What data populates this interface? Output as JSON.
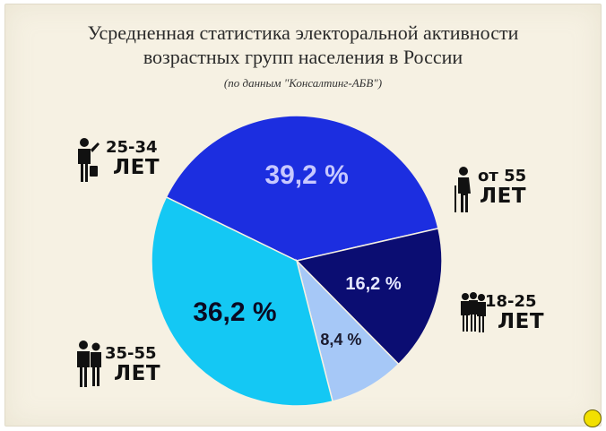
{
  "title_line1": "Усредненная статистика электоральной активности",
  "title_line2": "возрастных групп населения в России",
  "subtitle": "(по данным \"Консалтинг-АБВ\")",
  "chart_data": {
    "type": "pie",
    "title": "Усредненная статистика электоральной активности возрастных групп населения в России",
    "subtitle": "(по данным \"Консалтинг-АБВ\")",
    "slices": [
      {
        "group_line1": "25-34",
        "group_line2": "ЛЕТ",
        "value": 39.2,
        "label": "39,2 %",
        "color": "#1c2ee0",
        "text_color": "#c7c8ff"
      },
      {
        "group_line1": "от 55",
        "group_line2": "ЛЕТ",
        "value": 16.2,
        "label": "16,2 %",
        "color": "#0b0d72",
        "text_color": "#e4e6ff"
      },
      {
        "group_line1": "18-25",
        "group_line2": "ЛЕТ",
        "value": 8.4,
        "label": "8,4 %",
        "color": "#a6c8f7",
        "text_color": "#1a1a2e"
      },
      {
        "group_line1": "35-55",
        "group_line2": "ЛЕТ",
        "value": 36.2,
        "label": "36,2 %",
        "color": "#14c8f4",
        "text_color": "#0a0a22"
      }
    ]
  }
}
